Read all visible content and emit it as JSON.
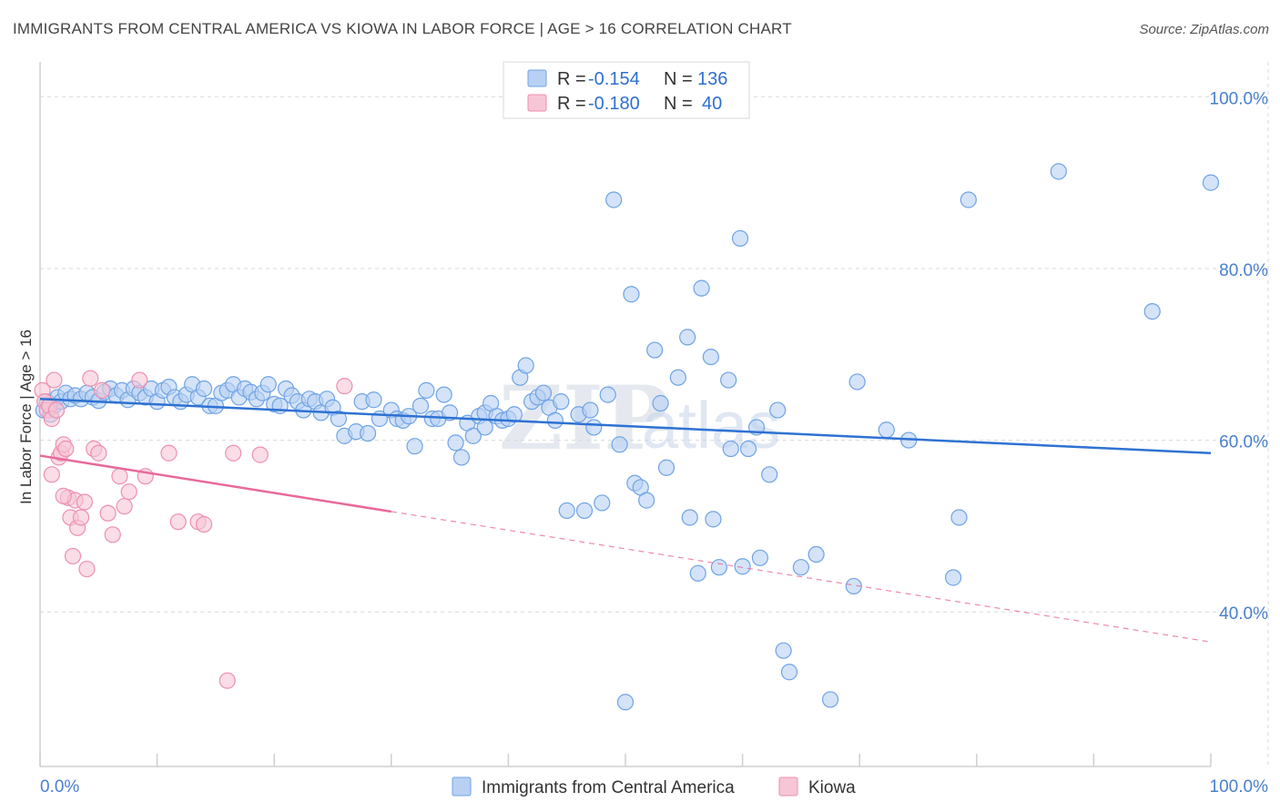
{
  "title": "IMMIGRANTS FROM CENTRAL AMERICA VS KIOWA IN LABOR FORCE | AGE > 16 CORRELATION CHART",
  "source": "Source: ZipAtlas.com",
  "watermark": {
    "zip": "ZIP",
    "atlas": "atlas"
  },
  "colors": {
    "blue": "#6fa3e6",
    "blue_fill": "#b8d0f3",
    "blue_line": "#2e72d2",
    "pink": "#ee8fb0",
    "pink_fill": "#f7c6d6",
    "pink_line": "#e8699a",
    "grid": "#d9d9d9",
    "tick": "#4a7fcf"
  },
  "legend": {
    "r_label": "R =",
    "n_label": "N =",
    "rows": [
      {
        "r": "-0.154",
        "n": "136",
        "series": "blue"
      },
      {
        "r": "-0.180",
        "n": "40",
        "series": "pink"
      }
    ]
  },
  "chart_data": {
    "type": "scatter",
    "title": "IMMIGRANTS FROM CENTRAL AMERICA VS KIOWA IN LABOR FORCE | AGE > 16 CORRELATION CHART",
    "xlabel": "",
    "ylabel": "In Labor Force | Age > 16",
    "xlim": [
      0,
      100
    ],
    "ylim": [
      22,
      103
    ],
    "x_tick_labels": [
      {
        "v": 0,
        "label": "0.0%"
      },
      {
        "v": 100,
        "label": "100.0%"
      }
    ],
    "y_tick_labels": [
      {
        "v": 40,
        "label": "40.0%"
      },
      {
        "v": 60,
        "label": "60.0%"
      },
      {
        "v": 80,
        "label": "80.0%"
      },
      {
        "v": 100,
        "label": "100.0%"
      }
    ],
    "series": [
      {
        "name": "Immigrants from Central America",
        "color": "blue",
        "trend": {
          "x0": 0,
          "y0": 64.8,
          "x1": 100,
          "y1": 58.5,
          "dashed_from": null
        },
        "points": [
          [
            0.3,
            63.5
          ],
          [
            0.6,
            64.5
          ],
          [
            0.9,
            63.0
          ],
          [
            1.2,
            64.0
          ],
          [
            1.5,
            65.0
          ],
          [
            1.8,
            64.5
          ],
          [
            2.2,
            65.5
          ],
          [
            2.6,
            64.8
          ],
          [
            3.0,
            65.2
          ],
          [
            3.5,
            64.8
          ],
          [
            4.0,
            65.5
          ],
          [
            4.5,
            65.0
          ],
          [
            5.0,
            64.6
          ],
          [
            5.5,
            65.6
          ],
          [
            6.0,
            66.0
          ],
          [
            6.5,
            65.2
          ],
          [
            7.0,
            65.8
          ],
          [
            7.5,
            64.7
          ],
          [
            8.0,
            66.0
          ],
          [
            8.5,
            65.5
          ],
          [
            9.0,
            65.0
          ],
          [
            9.5,
            66.0
          ],
          [
            10.0,
            64.5
          ],
          [
            10.5,
            65.8
          ],
          [
            11.0,
            66.2
          ],
          [
            11.5,
            65.0
          ],
          [
            12.0,
            64.5
          ],
          [
            12.5,
            65.3
          ],
          [
            13.0,
            66.5
          ],
          [
            13.5,
            65.0
          ],
          [
            14.0,
            66.0
          ],
          [
            14.5,
            64.0
          ],
          [
            15.0,
            64.0
          ],
          [
            15.5,
            65.5
          ],
          [
            16.0,
            65.8
          ],
          [
            16.5,
            66.5
          ],
          [
            17.0,
            65.0
          ],
          [
            17.5,
            66.0
          ],
          [
            18.0,
            65.6
          ],
          [
            18.5,
            64.8
          ],
          [
            19.0,
            65.5
          ],
          [
            19.5,
            66.5
          ],
          [
            20.0,
            64.2
          ],
          [
            20.5,
            64.0
          ],
          [
            21.0,
            66.0
          ],
          [
            21.5,
            65.2
          ],
          [
            22.0,
            64.5
          ],
          [
            22.5,
            63.5
          ],
          [
            23.0,
            64.8
          ],
          [
            23.5,
            64.5
          ],
          [
            24.0,
            63.2
          ],
          [
            24.5,
            64.8
          ],
          [
            25.0,
            63.8
          ],
          [
            25.5,
            62.5
          ],
          [
            26.0,
            60.5
          ],
          [
            27.0,
            61.0
          ],
          [
            27.5,
            64.5
          ],
          [
            28.0,
            60.8
          ],
          [
            28.5,
            64.7
          ],
          [
            29.0,
            62.5
          ],
          [
            30.0,
            63.5
          ],
          [
            30.5,
            62.5
          ],
          [
            31.0,
            62.3
          ],
          [
            31.5,
            62.8
          ],
          [
            32.0,
            59.3
          ],
          [
            32.5,
            64.0
          ],
          [
            33.0,
            65.8
          ],
          [
            33.5,
            62.5
          ],
          [
            34.0,
            62.5
          ],
          [
            34.5,
            65.3
          ],
          [
            35.0,
            63.2
          ],
          [
            35.5,
            59.7
          ],
          [
            36.0,
            58.0
          ],
          [
            36.5,
            62.0
          ],
          [
            37.0,
            60.5
          ],
          [
            37.5,
            62.8
          ],
          [
            38.0,
            63.2
          ],
          [
            38.5,
            64.3
          ],
          [
            39.0,
            62.8
          ],
          [
            39.5,
            62.3
          ],
          [
            40.0,
            62.5
          ],
          [
            40.5,
            63.0
          ],
          [
            41.0,
            67.3
          ],
          [
            41.5,
            68.7
          ],
          [
            42.0,
            64.5
          ],
          [
            42.5,
            65.0
          ],
          [
            43.0,
            65.5
          ],
          [
            43.5,
            63.8
          ],
          [
            44.0,
            62.3
          ],
          [
            45.0,
            51.8
          ],
          [
            46.0,
            63.0
          ],
          [
            46.5,
            51.8
          ],
          [
            47.0,
            63.5
          ],
          [
            47.3,
            61.5
          ],
          [
            48.0,
            52.7
          ],
          [
            48.5,
            65.3
          ],
          [
            49.0,
            88.0
          ],
          [
            49.5,
            59.5
          ],
          [
            50.5,
            77.0
          ],
          [
            50.8,
            55.0
          ],
          [
            51.3,
            54.5
          ],
          [
            51.8,
            53.0
          ],
          [
            52.5,
            70.5
          ],
          [
            53.0,
            64.3
          ],
          [
            53.5,
            56.8
          ],
          [
            54.5,
            67.3
          ],
          [
            55.3,
            72.0
          ],
          [
            55.5,
            51.0
          ],
          [
            56.2,
            44.5
          ],
          [
            56.5,
            77.7
          ],
          [
            57.3,
            69.7
          ],
          [
            57.5,
            50.8
          ],
          [
            58.0,
            45.2
          ],
          [
            58.8,
            67.0
          ],
          [
            59.0,
            59.0
          ],
          [
            59.8,
            83.5
          ],
          [
            60.5,
            59.0
          ],
          [
            61.2,
            61.5
          ],
          [
            61.5,
            46.3
          ],
          [
            62.3,
            56.0
          ],
          [
            63.0,
            63.5
          ],
          [
            63.5,
            35.5
          ],
          [
            64.0,
            33.0
          ],
          [
            65.0,
            45.2
          ],
          [
            66.3,
            46.7
          ],
          [
            67.5,
            29.8
          ],
          [
            69.5,
            43.0
          ],
          [
            69.8,
            66.8
          ],
          [
            72.3,
            61.2
          ],
          [
            74.2,
            60.0
          ],
          [
            78.0,
            44.0
          ],
          [
            78.5,
            51.0
          ],
          [
            79.3,
            88.0
          ],
          [
            87.0,
            91.3
          ],
          [
            95.0,
            75.0
          ],
          [
            100.0,
            90.0
          ],
          [
            50.0,
            29.5
          ],
          [
            60.0,
            45.3
          ],
          [
            44.5,
            64.5
          ],
          [
            38.0,
            61.5
          ]
        ]
      },
      {
        "name": "Kiowa",
        "color": "pink",
        "trend": {
          "x0": 0,
          "y0": 58.2,
          "x1": 100,
          "y1": 36.5,
          "dashed_from": 30
        },
        "points": [
          [
            0.2,
            65.8
          ],
          [
            0.4,
            64.5
          ],
          [
            0.6,
            63.5
          ],
          [
            0.8,
            64.0
          ],
          [
            1.0,
            62.5
          ],
          [
            1.2,
            67.0
          ],
          [
            1.4,
            63.5
          ],
          [
            1.6,
            58.0
          ],
          [
            1.8,
            58.5
          ],
          [
            2.0,
            59.5
          ],
          [
            2.2,
            59.0
          ],
          [
            2.4,
            53.3
          ],
          [
            2.6,
            51.0
          ],
          [
            2.8,
            46.5
          ],
          [
            3.0,
            53.0
          ],
          [
            3.2,
            49.8
          ],
          [
            3.5,
            51.0
          ],
          [
            3.8,
            52.8
          ],
          [
            4.0,
            45.0
          ],
          [
            4.3,
            67.2
          ],
          [
            4.6,
            59.0
          ],
          [
            5.0,
            58.5
          ],
          [
            5.3,
            65.8
          ],
          [
            5.8,
            51.5
          ],
          [
            6.2,
            49.0
          ],
          [
            6.8,
            55.8
          ],
          [
            7.2,
            52.3
          ],
          [
            7.6,
            54.0
          ],
          [
            8.5,
            67.0
          ],
          [
            9.0,
            55.8
          ],
          [
            11.0,
            58.5
          ],
          [
            11.8,
            50.5
          ],
          [
            13.5,
            50.5
          ],
          [
            14.0,
            50.2
          ],
          [
            16.0,
            32.0
          ],
          [
            16.5,
            58.5
          ],
          [
            18.8,
            58.3
          ],
          [
            26.0,
            66.3
          ],
          [
            1.0,
            56.0
          ],
          [
            2.0,
            53.5
          ]
        ]
      }
    ],
    "legend": [
      "Immigrants from Central America",
      "Kiowa"
    ]
  }
}
